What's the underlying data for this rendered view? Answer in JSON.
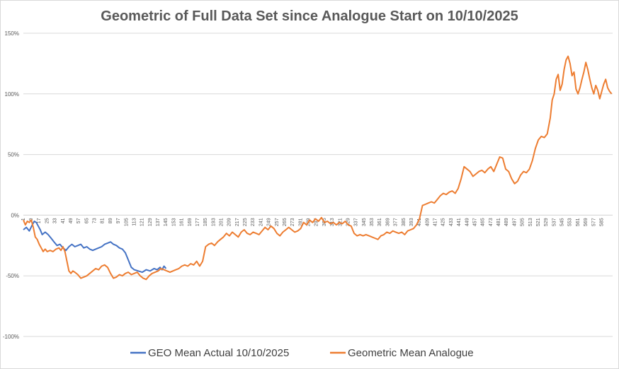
{
  "chart_data": {
    "type": "line",
    "title": "Geometric of Full Data Set since Analogue Start on 10/10/2025",
    "xlabel": "",
    "ylabel": "",
    "y_unit": "percent",
    "ylim": [
      -100,
      150
    ],
    "y_ticks": [
      -100,
      -50,
      0,
      50,
      100,
      150
    ],
    "y_tick_labels": [
      "-100%",
      "-50%",
      "0%",
      "50%",
      "100%",
      "150%"
    ],
    "x_range": [
      1,
      590
    ],
    "x_tick_labels": [
      "1",
      "9",
      "17",
      "25",
      "33",
      "41",
      "49",
      "57",
      "65",
      "73",
      "81",
      "89",
      "97",
      "105",
      "113",
      "121",
      "129",
      "137",
      "145",
      "153",
      "161",
      "169",
      "177",
      "185",
      "193",
      "201",
      "209",
      "217",
      "225",
      "233",
      "241",
      "249",
      "257",
      "265",
      "273",
      "281",
      "289",
      "297",
      "305",
      "313",
      "321",
      "329",
      "337",
      "345",
      "353",
      "361",
      "369",
      "377",
      "385",
      "393",
      "401",
      "409",
      "417",
      "425",
      "433",
      "441",
      "449",
      "457",
      "465",
      "473",
      "481",
      "489",
      "497",
      "505",
      "513",
      "521",
      "529",
      "537",
      "545",
      "553",
      "561",
      "569",
      "577",
      "585"
    ],
    "gridlines": "horizontal",
    "legend_position": "bottom",
    "colors": {
      "actual": "#4472C4",
      "analogue": "#ED7D31",
      "grid": "#D9D9D9",
      "title": "#595959"
    },
    "series": [
      {
        "name": "GEO Mean Actual 10/10/2025",
        "color": "#4472C4",
        "points": [
          [
            1,
            -12
          ],
          [
            4,
            -10
          ],
          [
            7,
            -13
          ],
          [
            10,
            -8
          ],
          [
            12,
            -5
          ],
          [
            14,
            -6
          ],
          [
            16,
            -9
          ],
          [
            18,
            -12
          ],
          [
            20,
            -16
          ],
          [
            23,
            -14
          ],
          [
            26,
            -16
          ],
          [
            29,
            -19
          ],
          [
            32,
            -22
          ],
          [
            35,
            -25
          ],
          [
            38,
            -24
          ],
          [
            41,
            -27
          ],
          [
            44,
            -29
          ],
          [
            47,
            -26
          ],
          [
            50,
            -24
          ],
          [
            53,
            -26
          ],
          [
            56,
            -25
          ],
          [
            59,
            -24
          ],
          [
            62,
            -27
          ],
          [
            65,
            -26
          ],
          [
            68,
            -28
          ],
          [
            71,
            -29
          ],
          [
            74,
            -28
          ],
          [
            77,
            -27
          ],
          [
            80,
            -26
          ],
          [
            83,
            -24
          ],
          [
            86,
            -23
          ],
          [
            89,
            -22
          ],
          [
            92,
            -24
          ],
          [
            95,
            -25
          ],
          [
            98,
            -27
          ],
          [
            101,
            -28
          ],
          [
            104,
            -31
          ],
          [
            107,
            -37
          ],
          [
            110,
            -43
          ],
          [
            113,
            -45
          ],
          [
            117,
            -46
          ],
          [
            121,
            -47
          ],
          [
            125,
            -45
          ],
          [
            129,
            -46
          ],
          [
            133,
            -44
          ],
          [
            136,
            -45
          ],
          [
            139,
            -43
          ],
          [
            141,
            -45
          ],
          [
            143,
            -42
          ],
          [
            145,
            -44
          ]
        ]
      },
      {
        "name": "Geometric Mean Analogue",
        "color": "#ED7D31",
        "points": [
          [
            1,
            -4
          ],
          [
            3,
            -8
          ],
          [
            5,
            -5
          ],
          [
            7,
            -6
          ],
          [
            9,
            -4
          ],
          [
            11,
            -10
          ],
          [
            13,
            -18
          ],
          [
            15,
            -20
          ],
          [
            17,
            -24
          ],
          [
            19,
            -27
          ],
          [
            21,
            -30
          ],
          [
            23,
            -28
          ],
          [
            25,
            -30
          ],
          [
            28,
            -29
          ],
          [
            31,
            -30
          ],
          [
            34,
            -28
          ],
          [
            37,
            -27
          ],
          [
            39,
            -29
          ],
          [
            41,
            -26
          ],
          [
            43,
            -30
          ],
          [
            45,
            -38
          ],
          [
            47,
            -46
          ],
          [
            49,
            -48
          ],
          [
            51,
            -46
          ],
          [
            53,
            -47
          ],
          [
            56,
            -49
          ],
          [
            59,
            -52
          ],
          [
            62,
            -51
          ],
          [
            65,
            -50
          ],
          [
            68,
            -48
          ],
          [
            71,
            -46
          ],
          [
            74,
            -44
          ],
          [
            77,
            -45
          ],
          [
            80,
            -42
          ],
          [
            83,
            -41
          ],
          [
            86,
            -43
          ],
          [
            89,
            -48
          ],
          [
            92,
            -52
          ],
          [
            95,
            -51
          ],
          [
            98,
            -49
          ],
          [
            101,
            -50
          ],
          [
            104,
            -48
          ],
          [
            107,
            -47
          ],
          [
            110,
            -49
          ],
          [
            113,
            -48
          ],
          [
            116,
            -47
          ],
          [
            119,
            -50
          ],
          [
            122,
            -52
          ],
          [
            125,
            -53
          ],
          [
            128,
            -50
          ],
          [
            131,
            -48
          ],
          [
            134,
            -47
          ],
          [
            137,
            -46
          ],
          [
            140,
            -44
          ],
          [
            143,
            -45
          ],
          [
            146,
            -46
          ],
          [
            149,
            -47
          ],
          [
            152,
            -46
          ],
          [
            155,
            -45
          ],
          [
            158,
            -44
          ],
          [
            161,
            -42
          ],
          [
            164,
            -41
          ],
          [
            167,
            -42
          ],
          [
            170,
            -40
          ],
          [
            173,
            -41
          ],
          [
            176,
            -38
          ],
          [
            179,
            -42
          ],
          [
            182,
            -38
          ],
          [
            185,
            -26
          ],
          [
            188,
            -24
          ],
          [
            191,
            -23
          ],
          [
            194,
            -25
          ],
          [
            197,
            -22
          ],
          [
            200,
            -20
          ],
          [
            203,
            -18
          ],
          [
            206,
            -15
          ],
          [
            209,
            -17
          ],
          [
            212,
            -14
          ],
          [
            215,
            -16
          ],
          [
            218,
            -18
          ],
          [
            221,
            -14
          ],
          [
            224,
            -12
          ],
          [
            227,
            -15
          ],
          [
            230,
            -16
          ],
          [
            233,
            -14
          ],
          [
            236,
            -15
          ],
          [
            239,
            -16
          ],
          [
            242,
            -13
          ],
          [
            245,
            -10
          ],
          [
            248,
            -12
          ],
          [
            251,
            -9
          ],
          [
            254,
            -11
          ],
          [
            257,
            -15
          ],
          [
            260,
            -17
          ],
          [
            263,
            -14
          ],
          [
            266,
            -12
          ],
          [
            269,
            -10
          ],
          [
            272,
            -12
          ],
          [
            275,
            -14
          ],
          [
            278,
            -13
          ],
          [
            281,
            -11
          ],
          [
            284,
            -6
          ],
          [
            287,
            -8
          ],
          [
            290,
            -4
          ],
          [
            293,
            -6
          ],
          [
            296,
            -3
          ],
          [
            299,
            -5
          ],
          [
            302,
            -2
          ],
          [
            305,
            -6
          ],
          [
            308,
            -5
          ],
          [
            311,
            -7
          ],
          [
            314,
            -6
          ],
          [
            317,
            -8
          ],
          [
            320,
            -6
          ],
          [
            323,
            -7
          ],
          [
            326,
            -5
          ],
          [
            329,
            -8
          ],
          [
            332,
            -9
          ],
          [
            335,
            -15
          ],
          [
            338,
            -17
          ],
          [
            341,
            -16
          ],
          [
            344,
            -17
          ],
          [
            347,
            -16
          ],
          [
            350,
            -17
          ],
          [
            353,
            -18
          ],
          [
            356,
            -19
          ],
          [
            359,
            -20
          ],
          [
            362,
            -17
          ],
          [
            365,
            -16
          ],
          [
            368,
            -14
          ],
          [
            371,
            -15
          ],
          [
            374,
            -13
          ],
          [
            377,
            -14
          ],
          [
            380,
            -15
          ],
          [
            383,
            -14
          ],
          [
            386,
            -16
          ],
          [
            389,
            -13
          ],
          [
            392,
            -12
          ],
          [
            395,
            -11
          ],
          [
            398,
            -8
          ],
          [
            401,
            -3
          ],
          [
            404,
            8
          ],
          [
            407,
            9
          ],
          [
            410,
            10
          ],
          [
            413,
            11
          ],
          [
            416,
            10
          ],
          [
            419,
            13
          ],
          [
            422,
            16
          ],
          [
            425,
            18
          ],
          [
            428,
            17
          ],
          [
            431,
            19
          ],
          [
            434,
            20
          ],
          [
            437,
            18
          ],
          [
            440,
            22
          ],
          [
            443,
            30
          ],
          [
            446,
            40
          ],
          [
            449,
            38
          ],
          [
            452,
            36
          ],
          [
            455,
            32
          ],
          [
            458,
            34
          ],
          [
            461,
            36
          ],
          [
            464,
            37
          ],
          [
            467,
            35
          ],
          [
            470,
            38
          ],
          [
            473,
            40
          ],
          [
            476,
            36
          ],
          [
            479,
            42
          ],
          [
            482,
            48
          ],
          [
            485,
            47
          ],
          [
            488,
            38
          ],
          [
            491,
            36
          ],
          [
            494,
            30
          ],
          [
            497,
            26
          ],
          [
            500,
            28
          ],
          [
            503,
            33
          ],
          [
            506,
            36
          ],
          [
            509,
            35
          ],
          [
            512,
            38
          ],
          [
            515,
            45
          ],
          [
            518,
            55
          ],
          [
            521,
            62
          ],
          [
            524,
            65
          ],
          [
            527,
            64
          ],
          [
            530,
            67
          ],
          [
            533,
            80
          ],
          [
            535,
            95
          ],
          [
            537,
            100
          ],
          [
            539,
            112
          ],
          [
            541,
            116
          ],
          [
            543,
            103
          ],
          [
            545,
            108
          ],
          [
            547,
            120
          ],
          [
            549,
            128
          ],
          [
            551,
            131
          ],
          [
            553,
            125
          ],
          [
            555,
            115
          ],
          [
            557,
            118
          ],
          [
            559,
            104
          ],
          [
            561,
            100
          ],
          [
            563,
            105
          ],
          [
            565,
            112
          ],
          [
            567,
            118
          ],
          [
            569,
            126
          ],
          [
            571,
            120
          ],
          [
            573,
            112
          ],
          [
            575,
            105
          ],
          [
            577,
            100
          ],
          [
            579,
            107
          ],
          [
            581,
            103
          ],
          [
            583,
            96
          ],
          [
            585,
            102
          ],
          [
            587,
            108
          ],
          [
            589,
            112
          ],
          [
            591,
            105
          ],
          [
            593,
            102
          ],
          [
            595,
            100
          ]
        ]
      }
    ]
  }
}
